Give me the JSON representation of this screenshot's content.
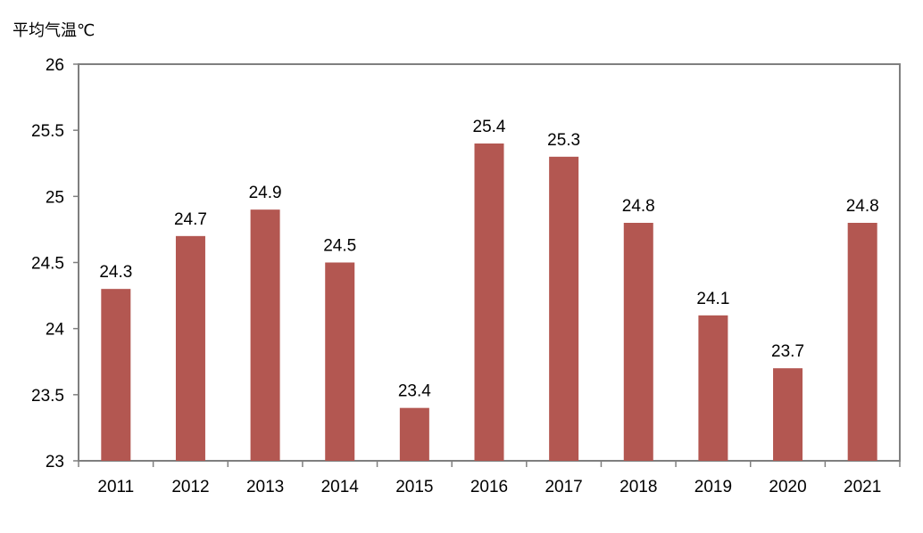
{
  "chart_data": {
    "type": "bar",
    "title": "",
    "xlabel": "",
    "ylabel": "平均气温℃",
    "categories": [
      "2011",
      "2012",
      "2013",
      "2014",
      "2015",
      "2016",
      "2017",
      "2018",
      "2019",
      "2020",
      "2021"
    ],
    "values": [
      24.3,
      24.7,
      24.9,
      24.5,
      23.4,
      25.4,
      25.3,
      24.8,
      24.1,
      23.7,
      24.8
    ],
    "data_labels": [
      "24.3",
      "24.7",
      "24.9",
      "24.5",
      "23.4",
      "25.4",
      "25.3",
      "24.8",
      "24.1",
      "23.7",
      "24.8"
    ],
    "ylim": [
      23,
      26
    ],
    "yticks": [
      23,
      23.5,
      24,
      24.5,
      25,
      25.5,
      26
    ],
    "ytick_labels": [
      "23",
      "23.5",
      "24",
      "24.5",
      "25",
      "25.5",
      "26"
    ],
    "grid": false,
    "legend": "none",
    "colors": {
      "bar": "#b35751",
      "axis": "#7f7f7f"
    }
  }
}
